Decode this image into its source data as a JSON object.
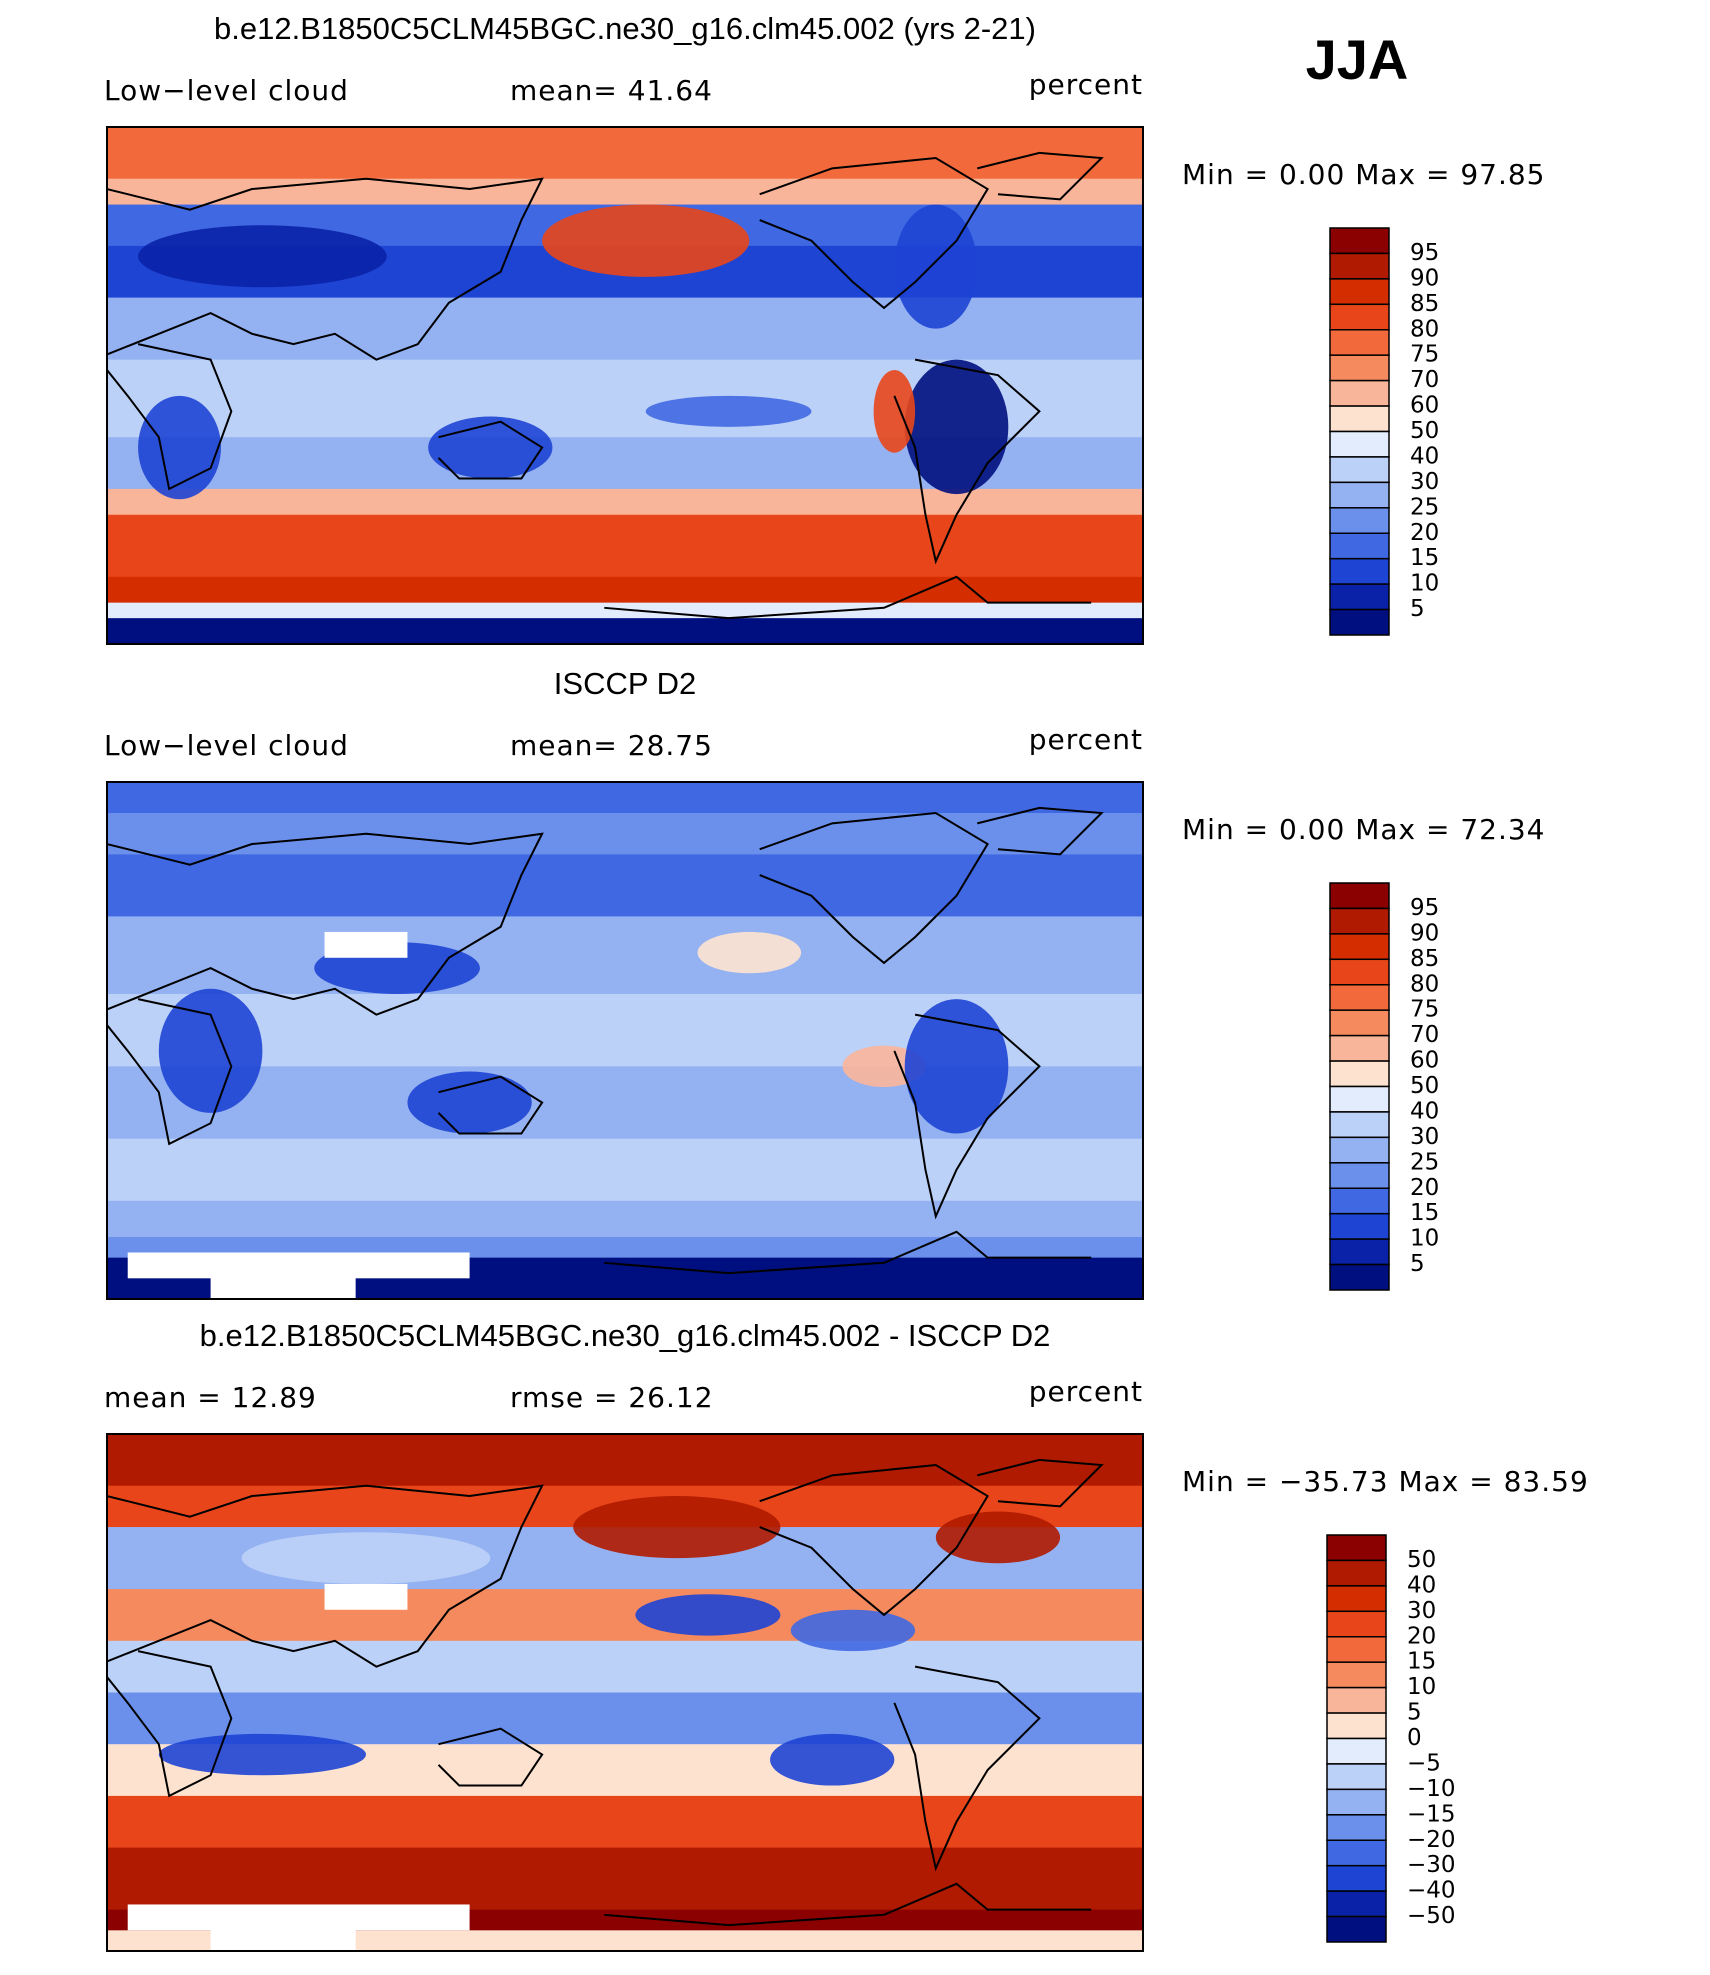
{
  "season": "JJA",
  "panels": [
    {
      "title": "b.e12.B1850C5CLM45BGC.ne30_g16.clm45.002 (yrs 2-21)",
      "left_label": "Low−level cloud",
      "center_label": "mean=  41.64",
      "right_label": "percent",
      "minmax": "Min =    0.00 Max =   97.85",
      "style": "model",
      "colorbar": {
        "levels": [
          "95",
          "90",
          "85",
          "80",
          "75",
          "70",
          "60",
          "50",
          "40",
          "30",
          "25",
          "20",
          "15",
          "10",
          "5"
        ],
        "colors": [
          "#8b0000",
          "#b01a00",
          "#d42e00",
          "#e8461a",
          "#f26a3c",
          "#f58a5e",
          "#f9b59a",
          "#fde3cf",
          "#e3ecfc",
          "#bcd1f8",
          "#94b2f2",
          "#6a90ec",
          "#4068e2",
          "#1e44d4",
          "#0a22a8",
          "#000f80"
        ]
      }
    },
    {
      "title": "ISCCP D2",
      "left_label": "Low−level cloud",
      "center_label": "mean=  28.75",
      "right_label": "percent",
      "minmax": "Min =    0.00 Max =   72.34",
      "style": "obs",
      "colorbar": {
        "levels": [
          "95",
          "90",
          "85",
          "80",
          "75",
          "70",
          "60",
          "50",
          "40",
          "30",
          "25",
          "20",
          "15",
          "10",
          "5"
        ],
        "colors": [
          "#8b0000",
          "#b01a00",
          "#d42e00",
          "#e8461a",
          "#f26a3c",
          "#f58a5e",
          "#f9b59a",
          "#fde3cf",
          "#e3ecfc",
          "#bcd1f8",
          "#94b2f2",
          "#6a90ec",
          "#4068e2",
          "#1e44d4",
          "#0a22a8",
          "#000f80"
        ]
      }
    },
    {
      "title": "b.e12.B1850C5CLM45BGC.ne30_g16.clm45.002 - ISCCP D2",
      "left_label": "mean =   12.89",
      "center_label": "rmse =   26.12",
      "right_label": "percent",
      "minmax": "Min = −35.73 Max =   83.59",
      "style": "diff",
      "colorbar": {
        "levels": [
          "50",
          "40",
          "30",
          "20",
          "15",
          "10",
          "5",
          "0",
          "−5",
          "−10",
          "−15",
          "−20",
          "−30",
          "−40",
          "−50"
        ],
        "colors": [
          "#8b0000",
          "#b01a00",
          "#d42e00",
          "#e8461a",
          "#f26a3c",
          "#f58a5e",
          "#f9b59a",
          "#fde3cf",
          "#e3ecfc",
          "#bcd1f8",
          "#94b2f2",
          "#6a90ec",
          "#4068e2",
          "#1e44d4",
          "#0a22a8",
          "#000f80"
        ]
      }
    }
  ]
}
